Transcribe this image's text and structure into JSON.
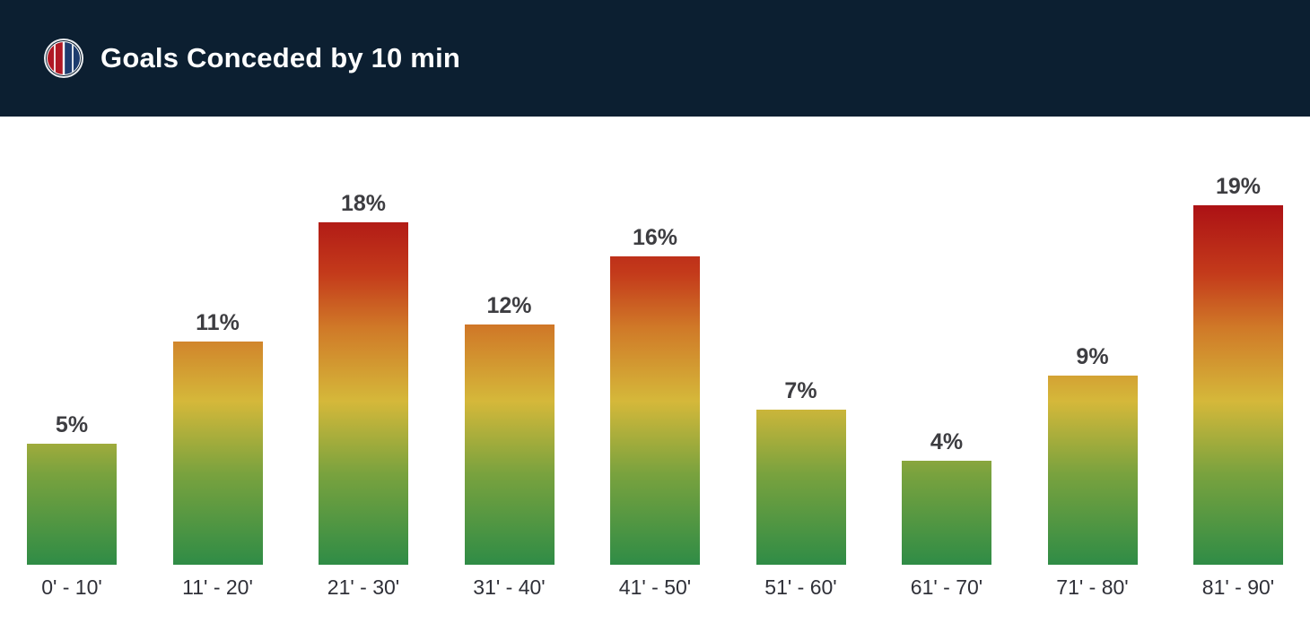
{
  "header": {
    "title": "Goals Conceded by 10 min",
    "logo_icon": "bologna-club-crest-icon"
  },
  "colors": {
    "header_background": "#0c1f31",
    "title_text": "#ffffff",
    "value_label_text": "#3d3d41",
    "axis_label_text": "#2f3038",
    "bar_gradient_bottom_to_top": [
      "#2f8c46",
      "#79a23e",
      "#d5b83a",
      "#d07a28",
      "#c43b1b",
      "#ab0f14"
    ]
  },
  "chart_data": {
    "type": "bar",
    "title": "Goals Conceded by 10 min",
    "categories": [
      "0' - 10'",
      "11' - 20'",
      "21' - 30'",
      "31' - 40'",
      "41' - 50'",
      "51' - 60'",
      "61' - 70'",
      "71' - 80'",
      "81' - 90'"
    ],
    "values": [
      5,
      11,
      18,
      12,
      16,
      7,
      4,
      9,
      19
    ],
    "labels": [
      "5%",
      "11%",
      "18%",
      "12%",
      "16%",
      "7%",
      "4%",
      "9%",
      "19%"
    ],
    "unit": "%",
    "xlabel": "",
    "ylabel": "",
    "ylim": [
      0,
      20
    ],
    "grid": false,
    "legend": false
  }
}
